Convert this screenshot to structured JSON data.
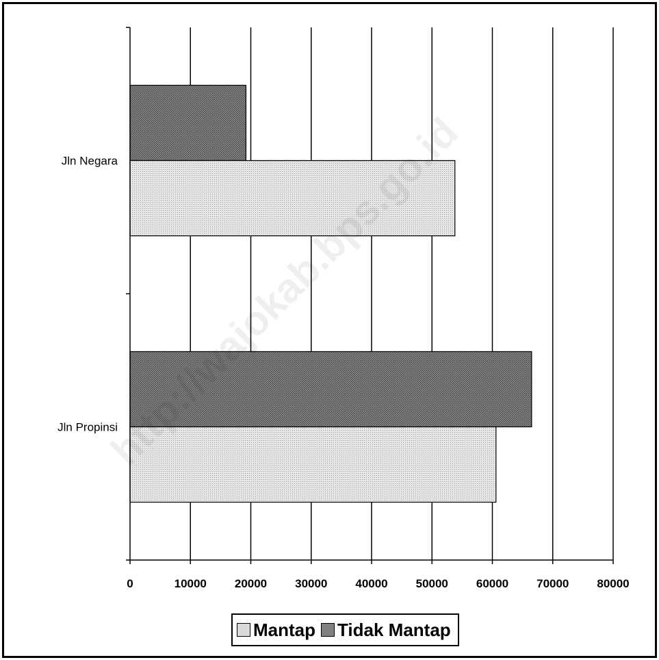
{
  "chart_data": {
    "type": "bar",
    "orientation": "horizontal",
    "categories": [
      "Jln Negara",
      "Jln Propinsi"
    ],
    "series": [
      {
        "name": "Tidak Mantap",
        "values": [
          19200,
          66500
        ],
        "color": "#7f7f7f"
      },
      {
        "name": "Mantap",
        "values": [
          53800,
          60600
        ],
        "color": "#d9d9d9"
      }
    ],
    "xlim": [
      0,
      80000
    ],
    "xticks": [
      0,
      10000,
      20000,
      30000,
      40000,
      50000,
      60000,
      70000,
      80000
    ],
    "grid": "vertical",
    "legend_position": "bottom",
    "legend_order": [
      "Mantap",
      "Tidak Mantap"
    ],
    "watermark": "http://wajokab.bps.go.id"
  }
}
